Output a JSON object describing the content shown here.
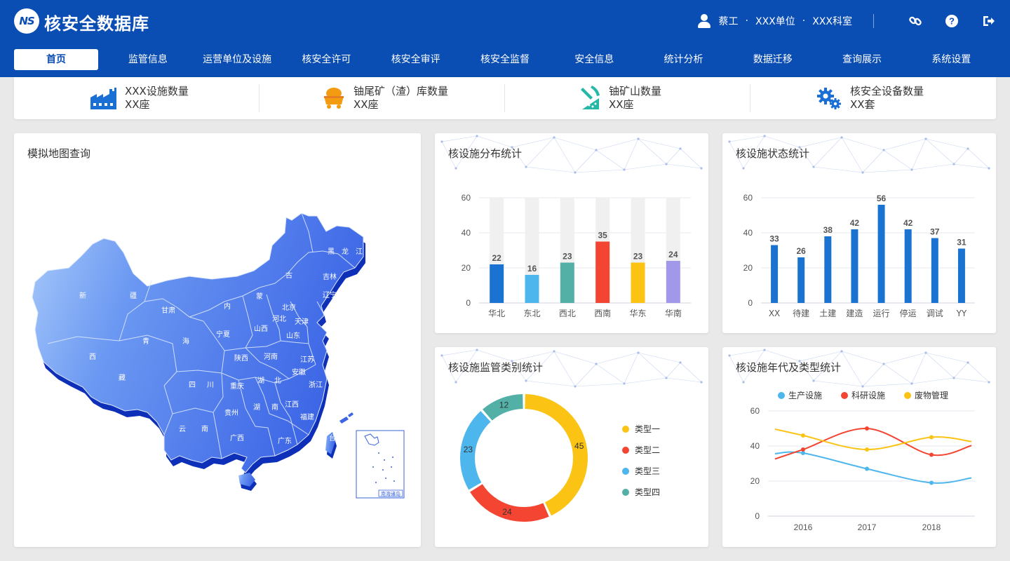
{
  "header": {
    "logo_text": "NS",
    "title": "核安全数据库",
    "user_name": "蔡工",
    "separator": "·",
    "unit": "XXX单位",
    "dept": "XXX科室",
    "icons": [
      "user-icon",
      "link-icon",
      "help-icon",
      "logout-icon"
    ]
  },
  "nav": {
    "items": [
      "首页",
      "监管信息",
      "运营单位及设施",
      "核安全许可",
      "核安全审评",
      "核安全监督",
      "安全信息",
      "统计分析",
      "数据迁移",
      "查询展示",
      "系统设置"
    ],
    "active_index": 0
  },
  "stats": [
    {
      "label": "XXX设施数量",
      "value": "XX座",
      "icon": "factory-icon",
      "color": "#1a6fd4"
    },
    {
      "label": "铀尾矿（渣）库数量",
      "value": "XX座",
      "icon": "mine-cart-icon",
      "color": "#f39c12"
    },
    {
      "label": "铀矿山数量",
      "value": "XX座",
      "icon": "mining-icon",
      "color": "#26b8a6"
    },
    {
      "label": "核安全设备数量",
      "value": "XX套",
      "icon": "gears-icon",
      "color": "#1a6fd4"
    }
  ],
  "map_panel": {
    "title": "模拟地图查询",
    "provinces": [
      "黑",
      "龙",
      "江",
      "吉林",
      "辽宁",
      "古",
      "蒙",
      "内",
      "新",
      "疆",
      "甘肃",
      "青",
      "海",
      "西",
      "藏",
      "宁夏",
      "山西",
      "北京",
      "河北",
      "天津",
      "山东",
      "陕西",
      "河南",
      "江苏",
      "安徽",
      "四",
      "川",
      "重庆",
      "湖",
      "北",
      "浙江",
      "湖",
      "南",
      "江西",
      "贵州",
      "云",
      "南",
      "广西",
      "广东",
      "福建",
      "台"
    ],
    "inset_label": "南海诸岛"
  },
  "colors": {
    "blue": "#1a73d0",
    "light_blue": "#4db6ec",
    "teal": "#52b0a7",
    "red": "#f44532",
    "yellow": "#fbc313",
    "purple": "#a298ea"
  },
  "chart_data": [
    {
      "type": "bar",
      "title": "核设施分布统计",
      "categories": [
        "华北",
        "东北",
        "西北",
        "西南",
        "华东",
        "华南"
      ],
      "values": [
        22,
        16,
        23,
        35,
        23,
        24
      ],
      "colors": [
        "#1a73d0",
        "#4db6ec",
        "#52b0a7",
        "#f44532",
        "#fbc313",
        "#a298ea"
      ],
      "background_max": 60,
      "ylim": [
        0,
        60
      ],
      "yticks": [
        0,
        20,
        40,
        60
      ],
      "data_labels": true,
      "grid": true
    },
    {
      "type": "bar",
      "title": "核设施状态统计",
      "categories": [
        "XX",
        "待建",
        "土建",
        "建造",
        "运行",
        "停运",
        "调试",
        "YY"
      ],
      "values": [
        33,
        26,
        38,
        42,
        56,
        42,
        37,
        31
      ],
      "color": "#1a73d0",
      "ylim": [
        0,
        60
      ],
      "yticks": [
        0,
        20,
        40,
        60
      ],
      "data_labels": true,
      "grid": true
    },
    {
      "type": "pie",
      "title": "核设施监管类别统计",
      "donut": true,
      "slices": [
        {
          "name": "类型一",
          "value": 45,
          "color": "#fbc313"
        },
        {
          "name": "类型二",
          "value": 24,
          "color": "#f44532"
        },
        {
          "name": "类型三",
          "value": 23,
          "color": "#4db6ec"
        },
        {
          "name": "类型四",
          "value": 12,
          "color": "#52b0a7"
        }
      ],
      "legend": "right"
    },
    {
      "type": "line",
      "title": "核设施年代及类型统计",
      "x": [
        "2016",
        "2017",
        "2018"
      ],
      "series": [
        {
          "name": "生产设施",
          "values": [
            36,
            27,
            19
          ],
          "color": "#4db6ec"
        },
        {
          "name": "科研设施",
          "values": [
            38,
            50,
            35
          ],
          "color": "#f44532"
        },
        {
          "name": "废物管理",
          "values": [
            46,
            38,
            45
          ],
          "color": "#fbc313"
        }
      ],
      "ylim": [
        0,
        60
      ],
      "yticks": [
        0,
        20,
        40,
        60
      ],
      "smooth": true,
      "legend": "top",
      "grid": true
    }
  ]
}
